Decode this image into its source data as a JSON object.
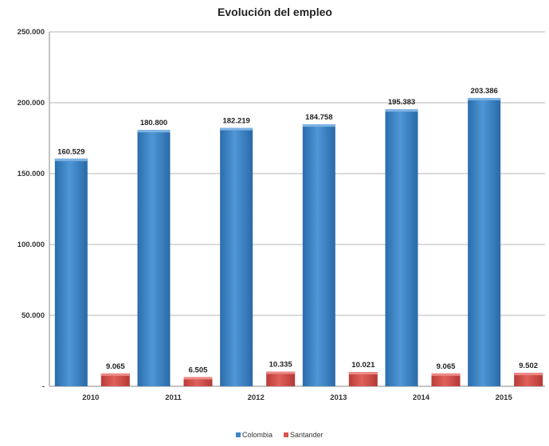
{
  "chart_data": {
    "type": "bar",
    "title": "Evolución del empleo",
    "categories": [
      "2010",
      "2011",
      "2012",
      "2013",
      "2014",
      "2015"
    ],
    "series": [
      {
        "name": "Colombia",
        "color": "#3d85c6",
        "values": [
          160529,
          180800,
          182219,
          184758,
          195383,
          203386
        ],
        "labels": [
          "160.529",
          "180.800",
          "182.219",
          "184.758",
          "195.383",
          "203.386"
        ]
      },
      {
        "name": "Santander",
        "color": "#d9534f",
        "values": [
          9065,
          6505,
          10335,
          10021,
          9065,
          9502
        ],
        "labels": [
          "9.065",
          "6.505",
          "10.335",
          "10.021",
          "9.065",
          "9.502"
        ]
      }
    ],
    "ylim": [
      0,
      250000
    ],
    "yticks": [
      0,
      50000,
      100000,
      150000,
      200000,
      250000
    ],
    "ytick_labels": [
      "-",
      "50.000",
      "100.000",
      "150.000",
      "200.000",
      "250.000"
    ],
    "grid": true,
    "legend": "bottom-center",
    "xlabel": "",
    "ylabel": ""
  }
}
